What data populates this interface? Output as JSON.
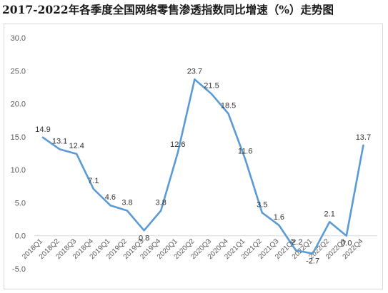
{
  "chart_data": {
    "type": "line",
    "title": "2017-2022年各季度全国网络零售渗透指数同比增速（%）走势图",
    "xlabel": "",
    "ylabel": "",
    "ylim": [
      -5,
      30
    ],
    "yticks": [
      "-5.0",
      "0.0",
      "5.0",
      "10.0",
      "15.0",
      "20.0",
      "25.0",
      "30.0"
    ],
    "grid": false,
    "legend": "none",
    "categories": [
      "2018Q1",
      "2018Q2",
      "2018Q3",
      "2018Q4",
      "2019Q1",
      "2019Q2",
      "2019Q3",
      "2019Q4",
      "2020Q1",
      "2020Q2",
      "2020Q3",
      "2020Q4",
      "2021Q1",
      "2021Q2",
      "2021Q3",
      "2021Q4",
      "2022Q1",
      "2022Q2",
      "2022Q3",
      "2022Q4"
    ],
    "series": [
      {
        "values": [
          14.9,
          13.1,
          12.4,
          7.1,
          4.6,
          3.8,
          0.8,
          3.8,
          12.6,
          23.7,
          21.5,
          18.5,
          11.6,
          3.5,
          1.6,
          -2.2,
          -2.7,
          2.1,
          0.0,
          13.7
        ],
        "labels": [
          "14.9",
          "13.1",
          "12.4",
          "7.1",
          "4.6",
          "3.8",
          "0.8",
          "3.8",
          "12.6",
          "23.7",
          "21.5",
          "18.5",
          "11.6",
          "3.5",
          "1.6",
          "-2.2",
          "-2.7",
          "2.1",
          "0.0",
          "13.7"
        ],
        "color": "#5b9bd5"
      }
    ]
  }
}
